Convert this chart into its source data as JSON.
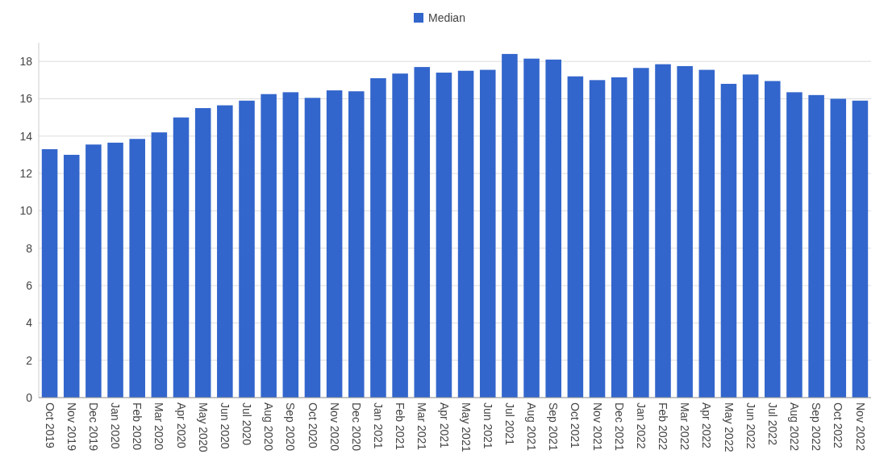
{
  "chart_data": {
    "type": "bar",
    "categories": [
      "Oct 2019",
      "Nov 2019",
      "Dec 2019",
      "Jan 2020",
      "Feb 2020",
      "Mar 2020",
      "Apr 2020",
      "May 2020",
      "Jun 2020",
      "Jul 2020",
      "Aug 2020",
      "Sep 2020",
      "Oct 2020",
      "Nov 2020",
      "Dec 2020",
      "Jan 2021",
      "Feb 2021",
      "Mar 2021",
      "Apr 2021",
      "May 2021",
      "Jun 2021",
      "Jul 2021",
      "Aug 2021",
      "Sep 2021",
      "Oct 2021",
      "Nov 2021",
      "Dec 2021",
      "Jan 2022",
      "Feb 2022",
      "Mar 2022",
      "Apr 2022",
      "May 2022",
      "Jun 2022",
      "Jul 2022",
      "Aug 2022",
      "Sep 2022",
      "Oct 2022",
      "Nov 2022"
    ],
    "series": [
      {
        "name": "Median",
        "color": "#3366cc",
        "values": [
          13.3,
          13.0,
          13.55,
          13.65,
          13.85,
          14.2,
          15.0,
          15.5,
          15.65,
          15.9,
          16.25,
          16.35,
          16.05,
          16.45,
          16.4,
          17.1,
          17.35,
          17.7,
          17.4,
          17.5,
          17.55,
          18.4,
          18.15,
          18.1,
          17.2,
          17.0,
          17.15,
          17.65,
          17.85,
          17.75,
          17.55,
          16.8,
          17.3,
          16.95,
          16.35,
          16.2,
          16.0,
          15.9
        ]
      }
    ],
    "ylim": [
      0,
      19
    ],
    "yticks": [
      0,
      2,
      4,
      6,
      8,
      10,
      12,
      14,
      16,
      18
    ],
    "grid": "y",
    "legend": "top"
  }
}
